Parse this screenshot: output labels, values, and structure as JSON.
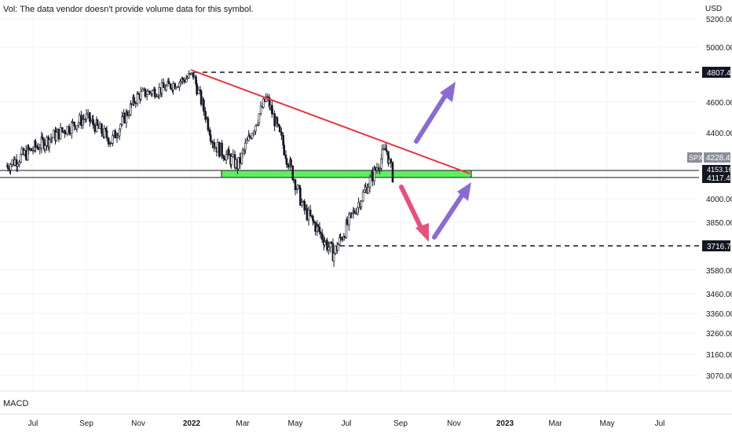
{
  "header": {
    "volume_notice": "Vol: The data vendor doesn't provide volume data for this symbol."
  },
  "lower_pane": {
    "indicator_label": "MACD"
  },
  "chart_data": {
    "type": "candlestick",
    "symbol": "SPX",
    "currency": "USD",
    "last_price": "4228.49",
    "y_ticks": [
      "5200.00",
      "5000.00",
      "4600.00",
      "4400.00",
      "4000.00",
      "3850.00",
      "3580.00",
      "3460.00",
      "3360.00",
      "3260.00",
      "3160.00",
      "3070.00"
    ],
    "x_ticks": [
      "Jul",
      "Sep",
      "Nov",
      "2022",
      "Mar",
      "May",
      "Jul",
      "Sep",
      "Nov",
      "2023",
      "Mar",
      "May",
      "Jul"
    ],
    "price_labels": [
      "4807.48",
      "4117.44",
      "3716.73",
      "4153.16"
    ],
    "price_series_approx": [
      [
        "2021-06-01",
        4200
      ],
      [
        "2021-07-01",
        4300
      ],
      [
        "2021-08-01",
        4400
      ],
      [
        "2021-09-01",
        4500
      ],
      [
        "2021-10-01",
        4350
      ],
      [
        "2021-11-01",
        4650
      ],
      [
        "2021-12-01",
        4700
      ],
      [
        "2022-01-03",
        4796
      ],
      [
        "2022-01-27",
        4330
      ],
      [
        "2022-02-24",
        4200
      ],
      [
        "2022-03-29",
        4630
      ],
      [
        "2022-05-12",
        3930
      ],
      [
        "2022-06-16",
        3670
      ],
      [
        "2022-07-01",
        3820
      ],
      [
        "2022-08-16",
        4305
      ],
      [
        "2022-08-23",
        4140
      ]
    ],
    "annotations": {
      "resistance_level": 4807.48,
      "support_level": 3716.73,
      "support_zone": [
        4117.44,
        4153.16
      ],
      "descending_trendline": [
        [
          "2022-01-04",
          4818
        ],
        [
          "2022-11-05",
          4160
        ]
      ]
    },
    "colors": {
      "candles": "#131722",
      "trendline": "#e8333c",
      "zone": "#5ef05c",
      "bull_arrow": "#8a6bd6",
      "bear_arrow": "#e8507a",
      "label_bg": "#131722",
      "label_text": "#ffffff",
      "symbol_tag": "#8a8e99"
    }
  }
}
